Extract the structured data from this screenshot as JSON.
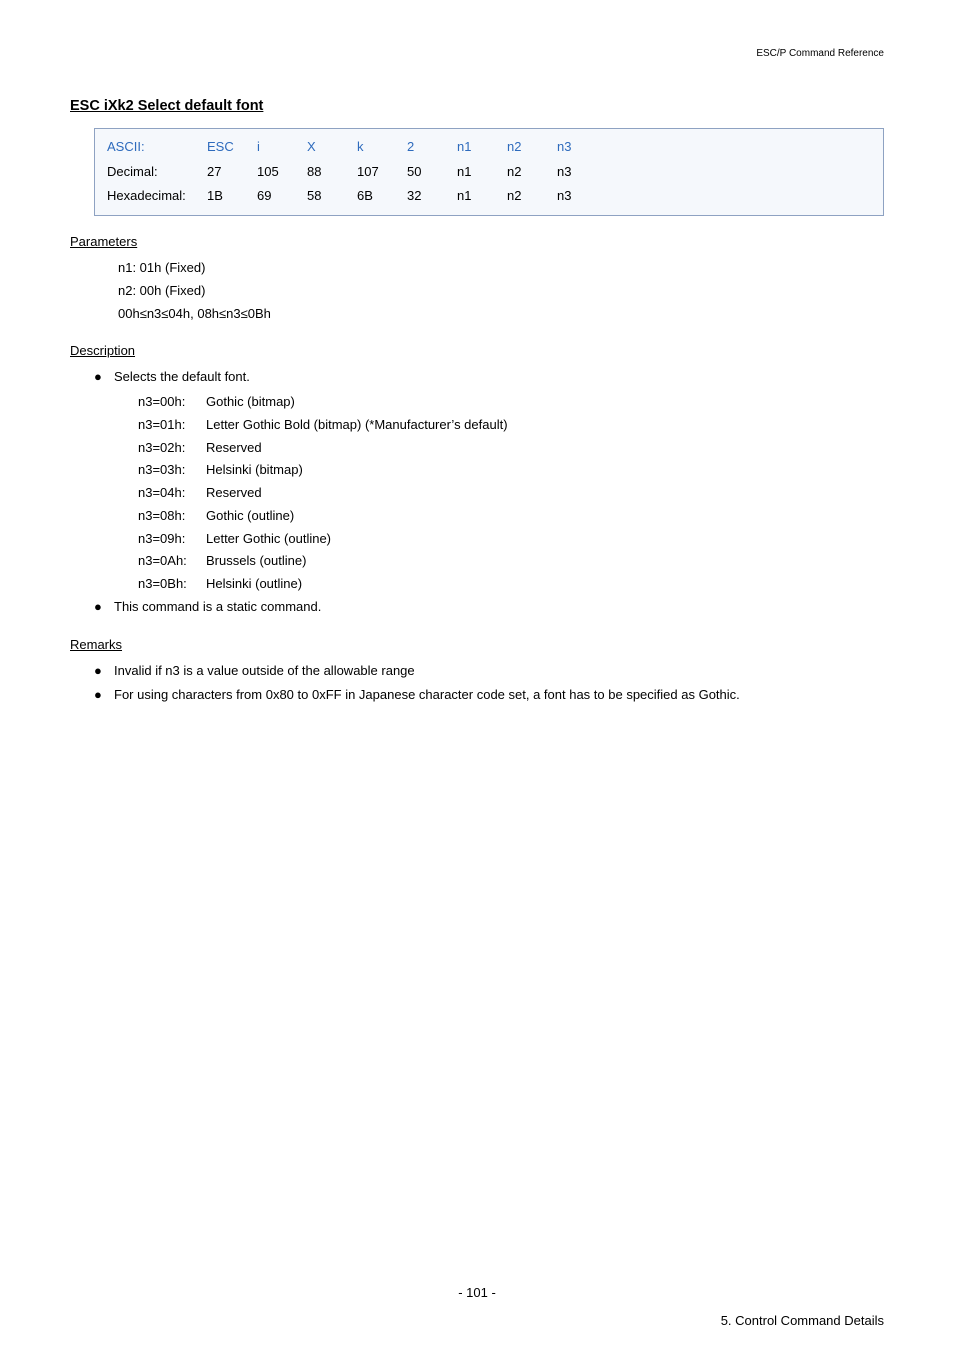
{
  "header": {
    "right": "ESC/P Command Reference"
  },
  "title": "ESC iXk2   Select default font",
  "table": {
    "rows": [
      {
        "label": "ASCII:",
        "c": [
          "ESC",
          "i",
          "X",
          "k",
          "2",
          "n1",
          "n2",
          "n3"
        ],
        "highlight": true
      },
      {
        "label": "Decimal:",
        "c": [
          "27",
          "105",
          "88",
          "107",
          "50",
          "n1",
          "n2",
          "n3"
        ],
        "highlight": false
      },
      {
        "label": "Hexadecimal:",
        "c": [
          "1B",
          "69",
          "58",
          "6B",
          "32",
          "n1",
          "n2",
          "n3"
        ],
        "highlight": false
      }
    ]
  },
  "parameters": {
    "heading": "Parameters",
    "lines": [
      "n1: 01h (Fixed)",
      "n2: 00h (Fixed)",
      "00h≤n3≤04h, 08h≤n3≤0Bh"
    ]
  },
  "description": {
    "heading": "Description",
    "bullets": [
      {
        "text": "Selects the default font.",
        "subitems": [
          {
            "k": "n3=00h:",
            "v": "Gothic (bitmap)"
          },
          {
            "k": "n3=01h:",
            "v": "Letter Gothic Bold (bitmap) (*Manufacturer’s default)"
          },
          {
            "k": "n3=02h:",
            "v": "Reserved"
          },
          {
            "k": "n3=03h:",
            "v": "Helsinki (bitmap)"
          },
          {
            "k": "n3=04h:",
            "v": "Reserved"
          },
          {
            "k": "n3=08h:",
            "v": "Gothic (outline)"
          },
          {
            "k": "n3=09h:",
            "v": "Letter Gothic (outline)"
          },
          {
            "k": "n3=0Ah:",
            "v": "Brussels (outline)"
          },
          {
            "k": "n3=0Bh:",
            "v": "Helsinki (outline)"
          }
        ]
      },
      {
        "text": "This command is a static command."
      }
    ]
  },
  "remarks": {
    "heading": "Remarks",
    "bullets": [
      {
        "text": "Invalid if n3 is a value outside of the allowable range"
      },
      {
        "text": "For using characters from 0x80 to 0xFF in Japanese character code set, a font has to be specified as Gothic."
      }
    ]
  },
  "footer": {
    "center": "- 101 -",
    "right": "5. Control Command Details"
  }
}
